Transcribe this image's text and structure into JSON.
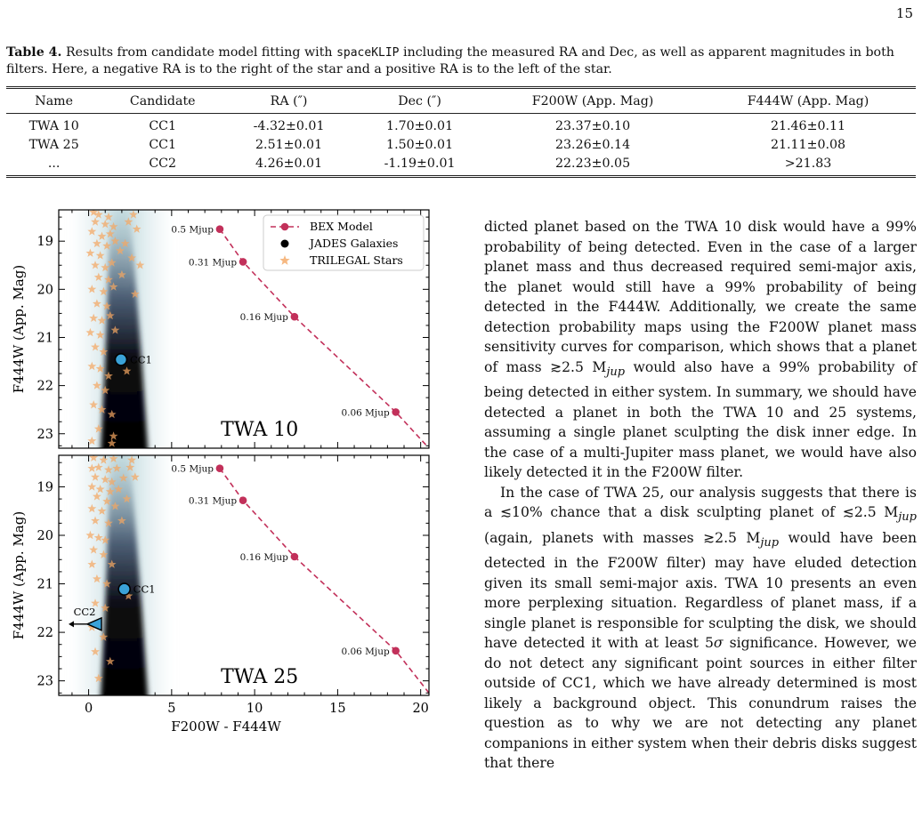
{
  "page_number": "15",
  "caption": {
    "label": "Table 4.",
    "text_before_code": " Results from candidate model fitting with ",
    "code": "spaceKLIP",
    "text_after_code": " including the measured RA and Dec, as well as apparent magnitudes in both filters. Here, a negative RA is to the right of the star and a positive RA is to the left of the star."
  },
  "table": {
    "headers": [
      "Name",
      "Candidate",
      "RA (″)",
      "Dec (″)",
      "F200W (App. Mag)",
      "F444W (App. Mag)"
    ],
    "rows": [
      [
        "TWA 10",
        "CC1",
        "-4.32±0.01",
        "1.70±0.01",
        "23.37±0.10",
        "21.46±0.11"
      ],
      [
        "TWA 25",
        "CC1",
        "2.51±0.01",
        "1.50±0.01",
        "23.26±0.14",
        "21.11±0.08"
      ],
      [
        "...",
        "CC2",
        "4.26±0.01",
        "-1.19±0.01",
        "22.23±0.05",
        ">21.83"
      ]
    ]
  },
  "chart_data": [
    {
      "type": "scatter",
      "panel_label": "TWA 10",
      "xlabel": "",
      "ylabel": "F444W (App. Mag)",
      "xlim": [
        -1.8,
        20.5
      ],
      "ylim": [
        23.3,
        18.35
      ],
      "y_inverted": true,
      "yticks": [
        "19",
        "20",
        "21",
        "22",
        "23"
      ],
      "legend": {
        "placement": "top-right",
        "entries": [
          "BEX Model",
          "JADES Galaxies",
          "TRILEGAL Stars"
        ]
      },
      "bex_model": {
        "name": "BEX Model",
        "color": "#c2305a",
        "points": [
          {
            "x": 7.9,
            "y": 18.75,
            "label": "0.5 Mjup"
          },
          {
            "x": 9.3,
            "y": 19.43,
            "label": "0.31 Mjup"
          },
          {
            "x": 12.4,
            "y": 20.57,
            "label": "0.16 Mjup"
          },
          {
            "x": 18.5,
            "y": 22.55,
            "label": "0.06 Mjup"
          }
        ],
        "line_end": {
          "x": 20.5,
          "y": 23.3
        }
      },
      "candidates": [
        {
          "label": "CC1",
          "x": 1.95,
          "y": 21.46
        }
      ],
      "trilegal_stars": [
        [
          0.3,
          18.4
        ],
        [
          0.6,
          18.45
        ],
        [
          1.2,
          18.5
        ],
        [
          2.7,
          18.45
        ],
        [
          0.4,
          18.6
        ],
        [
          1.0,
          18.65
        ],
        [
          1.5,
          18.7
        ],
        [
          2.4,
          18.6
        ],
        [
          0.2,
          18.8
        ],
        [
          0.8,
          18.9
        ],
        [
          1.3,
          18.85
        ],
        [
          2.9,
          18.75
        ],
        [
          0.5,
          19.05
        ],
        [
          1.1,
          19.1
        ],
        [
          1.6,
          19.0
        ],
        [
          2.2,
          19.05
        ],
        [
          0.1,
          19.25
        ],
        [
          0.7,
          19.3
        ],
        [
          1.9,
          19.2
        ],
        [
          2.6,
          19.35
        ],
        [
          0.4,
          19.5
        ],
        [
          1.0,
          19.55
        ],
        [
          1.4,
          19.45
        ],
        [
          3.1,
          19.5
        ],
        [
          0.6,
          19.75
        ],
        [
          1.2,
          19.8
        ],
        [
          2.0,
          19.7
        ],
        [
          0.2,
          20.0
        ],
        [
          0.9,
          20.05
        ],
        [
          1.5,
          19.95
        ],
        [
          2.8,
          20.1
        ],
        [
          0.5,
          20.3
        ],
        [
          1.1,
          20.35
        ],
        [
          0.3,
          20.6
        ],
        [
          0.8,
          20.65
        ],
        [
          1.3,
          20.55
        ],
        [
          0.1,
          20.9
        ],
        [
          0.7,
          20.95
        ],
        [
          1.6,
          20.85
        ],
        [
          0.4,
          21.2
        ],
        [
          0.9,
          21.3
        ],
        [
          0.2,
          21.6
        ],
        [
          0.7,
          21.65
        ],
        [
          1.2,
          21.8
        ],
        [
          0.5,
          22.0
        ],
        [
          1.0,
          22.1
        ],
        [
          0.3,
          22.4
        ],
        [
          0.8,
          22.5
        ],
        [
          1.4,
          22.6
        ],
        [
          0.6,
          22.9
        ],
        [
          1.5,
          23.05
        ],
        [
          1.4,
          23.2
        ],
        [
          0.2,
          23.15
        ],
        [
          2.3,
          21.7
        ]
      ]
    },
    {
      "type": "scatter",
      "panel_label": "TWA 25",
      "xlabel": "F200W - F444W",
      "ylabel": "F444W (App. Mag)",
      "xlim": [
        -1.8,
        20.5
      ],
      "ylim": [
        23.3,
        18.35
      ],
      "y_inverted": true,
      "xticks": [
        "0",
        "5",
        "10",
        "15",
        "20"
      ],
      "yticks": [
        "19",
        "20",
        "21",
        "22",
        "23"
      ],
      "bex_model": {
        "name": "BEX Model",
        "color": "#c2305a",
        "points": [
          {
            "x": 7.9,
            "y": 18.62,
            "label": "0.5 Mjup"
          },
          {
            "x": 9.3,
            "y": 19.28,
            "label": "0.31 Mjup"
          },
          {
            "x": 12.4,
            "y": 20.44,
            "label": "0.16 Mjup"
          },
          {
            "x": 18.5,
            "y": 22.38,
            "label": "0.06 Mjup"
          }
        ],
        "line_end": {
          "x": 20.5,
          "y": 23.25
        }
      },
      "candidates": [
        {
          "label": "CC1",
          "x": 2.15,
          "y": 21.11
        },
        {
          "label": "CC2",
          "x": 0.4,
          "y": 21.83,
          "upper_limit": true
        }
      ],
      "trilegal_stars": [
        [
          0.3,
          18.4
        ],
        [
          0.9,
          18.45
        ],
        [
          1.5,
          18.42
        ],
        [
          2.6,
          18.45
        ],
        [
          0.2,
          18.62
        ],
        [
          0.6,
          18.6
        ],
        [
          1.2,
          18.65
        ],
        [
          1.7,
          18.62
        ],
        [
          2.5,
          18.6
        ],
        [
          0.4,
          18.8
        ],
        [
          1.0,
          18.85
        ],
        [
          1.4,
          18.9
        ],
        [
          2.1,
          18.82
        ],
        [
          2.8,
          18.8
        ],
        [
          0.2,
          19.0
        ],
        [
          0.7,
          19.05
        ],
        [
          1.3,
          19.1
        ],
        [
          1.8,
          19.05
        ],
        [
          0.5,
          19.2
        ],
        [
          1.1,
          19.3
        ],
        [
          2.3,
          19.25
        ],
        [
          0.2,
          19.45
        ],
        [
          0.8,
          19.5
        ],
        [
          1.6,
          19.4
        ],
        [
          0.4,
          19.7
        ],
        [
          1.2,
          19.75
        ],
        [
          2.0,
          19.7
        ],
        [
          0.1,
          20.0
        ],
        [
          0.6,
          20.05
        ],
        [
          1.0,
          20.1
        ],
        [
          0.3,
          20.3
        ],
        [
          0.9,
          20.4
        ],
        [
          0.2,
          20.6
        ],
        [
          1.4,
          20.6
        ],
        [
          0.5,
          20.9
        ],
        [
          1.1,
          21.0
        ],
        [
          2.4,
          21.25
        ],
        [
          0.4,
          21.4
        ],
        [
          1.0,
          21.5
        ],
        [
          0.2,
          21.9
        ],
        [
          0.9,
          22.1
        ],
        [
          0.4,
          22.4
        ],
        [
          1.3,
          22.6
        ],
        [
          0.6,
          22.95
        ]
      ]
    }
  ],
  "body": {
    "p1": "dicted planet based on the TWA 10 disk would have a 99% probability of being detected. Even in the case of a larger planet mass and thus decreased required semi-major axis, the planet would still have a 99% probability of being detected in the F444W. Additionally, we create the same detection probability maps using the F200W planet mass sensitivity curves for comparison, which shows that a planet of mass ≳2.5 M",
    "p1_sub": "jup",
    "p1_end": " would also have a 99% probability of being detected in either system. In summary, we should have detected a planet in both the TWA 10 and 25 systems, assuming a single planet sculpting the disk inner edge. In the case of a multi-Jupiter mass planet, we would have also likely detected it in the F200W filter.",
    "p2_a": "In the case of TWA 25, our analysis suggests that there is a ≲10% chance that a disk sculpting planet of ≲2.5 M",
    "p2_sub1": "jup",
    "p2_b": " (again, planets with masses ≳2.5 M",
    "p2_sub2": "jup",
    "p2_c": " would have been detected in the F200W filter) may have eluded detection given its small semi-major axis. TWA 10 presents an even more perplexing situation. Regardless of planet mass, if a single planet is responsible for sculpting the disk, we should have detected it with at least 5",
    "p2_sigma": "σ",
    "p2_d": " significance. However, we do not detect any significant point sources in either filter outside of CC1, which we have already determined is most likely a background object. This conundrum raises the question as to why we are not detecting any planet companions in either system when their debris disks suggest that there"
  }
}
